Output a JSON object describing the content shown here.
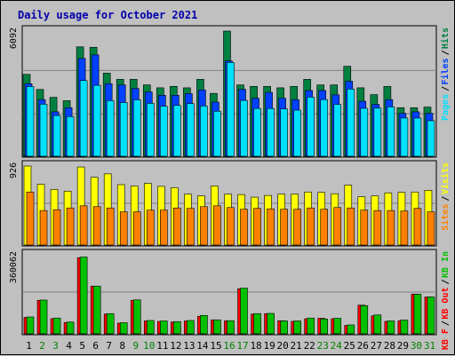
{
  "title": "Daily usage for October 2021",
  "colors": {
    "background": "#c0c0c0",
    "plot_bg": "#c0c0c0",
    "hits": "#008040",
    "files": "#0040ff",
    "pages": "#00e0ff",
    "visits": "#ffff00",
    "sites": "#ff8000",
    "kbin": "#00c000",
    "kbout": "#ff0000",
    "title": "#0000aa",
    "weekend_day": "#008000",
    "weekday": "#000000"
  },
  "chart_data": [
    {
      "type": "bar",
      "panel": "top",
      "ymax_label": "6092",
      "ymax": 6092,
      "right_labels": [
        "Hits",
        "Files",
        "Pages"
      ],
      "categories": [
        "1",
        "2",
        "3",
        "4",
        "5",
        "6",
        "7",
        "8",
        "9",
        "10",
        "11",
        "12",
        "13",
        "14",
        "15",
        "16",
        "17",
        "18",
        "19",
        "20",
        "21",
        "22",
        "23",
        "24",
        "25",
        "26",
        "27",
        "28",
        "29",
        "30",
        "31"
      ],
      "series": [
        {
          "name": "Hits",
          "values": [
            4000,
            3270,
            2890,
            2730,
            5330,
            5310,
            4060,
            3760,
            3760,
            3490,
            3350,
            3420,
            3350,
            3760,
            3080,
            6092,
            3490,
            3420,
            3420,
            3350,
            3420,
            3760,
            3490,
            3490,
            4390,
            3350,
            3020,
            3420,
            2390,
            2390,
            2420
          ]
        },
        {
          "name": "Files",
          "values": [
            3550,
            2780,
            2190,
            2390,
            4770,
            4940,
            3550,
            3490,
            3320,
            3150,
            2990,
            2990,
            3070,
            3250,
            2660,
            4650,
            3280,
            2850,
            3130,
            2850,
            2780,
            3220,
            3220,
            3010,
            3670,
            2700,
            2550,
            2780,
            2120,
            2190,
            2120
          ]
        },
        {
          "name": "Pages",
          "values": [
            3410,
            2560,
            2010,
            1960,
            3700,
            3470,
            2730,
            2640,
            2770,
            2600,
            2460,
            2500,
            2590,
            2470,
            2220,
            4570,
            2740,
            2350,
            2350,
            2330,
            2270,
            2900,
            2780,
            2550,
            3290,
            2360,
            2370,
            2430,
            1890,
            1890,
            1760
          ]
        }
      ]
    },
    {
      "type": "bar",
      "panel": "middle",
      "ymax_label": "926",
      "ymax": 926,
      "right_labels": [
        "Visits",
        "Sites"
      ],
      "categories": [
        "1",
        "2",
        "3",
        "4",
        "5",
        "6",
        "7",
        "8",
        "9",
        "10",
        "11",
        "12",
        "13",
        "14",
        "15",
        "16",
        "17",
        "18",
        "19",
        "20",
        "21",
        "22",
        "23",
        "24",
        "25",
        "26",
        "27",
        "28",
        "29",
        "30",
        "31"
      ],
      "series": [
        {
          "name": "Visits",
          "values": [
            926,
            715,
            655,
            635,
            915,
            795,
            835,
            710,
            695,
            725,
            690,
            675,
            600,
            580,
            695,
            600,
            595,
            565,
            585,
            600,
            600,
            625,
            620,
            605,
            705,
            570,
            580,
            615,
            620,
            625,
            645
          ]
        },
        {
          "name": "Sites",
          "values": [
            625,
            410,
            420,
            440,
            465,
            455,
            440,
            395,
            395,
            415,
            415,
            440,
            435,
            455,
            465,
            445,
            425,
            435,
            430,
            425,
            425,
            440,
            425,
            445,
            440,
            415,
            410,
            410,
            405,
            435,
            395
          ]
        }
      ]
    },
    {
      "type": "bar",
      "panel": "bottom",
      "ymax_label": "360062",
      "ymax": 360062,
      "right_labels": [
        "KB In",
        "KB Out",
        "KB F"
      ],
      "categories": [
        "1",
        "2",
        "3",
        "4",
        "5",
        "6",
        "7",
        "8",
        "9",
        "10",
        "11",
        "12",
        "13",
        "14",
        "15",
        "16",
        "17",
        "18",
        "19",
        "20",
        "21",
        "22",
        "23",
        "24",
        "25",
        "26",
        "27",
        "28",
        "29",
        "30",
        "31"
      ],
      "series": [
        {
          "name": "KB F",
          "values": [
            78000,
            155000,
            72000,
            55000,
            347000,
            219000,
            93000,
            52000,
            155000,
            62000,
            60000,
            57000,
            62000,
            83000,
            67000,
            63000,
            207000,
            93000,
            95000,
            63000,
            60000,
            72000,
            74000,
            72000,
            42000,
            133000,
            85000,
            60000,
            63000,
            183000,
            170000
          ]
        },
        {
          "name": "KB In",
          "values": [
            80000,
            156000,
            75000,
            57000,
            350000,
            219000,
            95000,
            54000,
            157000,
            64000,
            62000,
            59000,
            64000,
            87000,
            67000,
            63000,
            210000,
            95000,
            96000,
            62000,
            62000,
            75000,
            71000,
            74000,
            44000,
            131000,
            89000,
            62000,
            66000,
            182000,
            170000
          ]
        }
      ]
    }
  ],
  "x_axis": {
    "labels": [
      "1",
      "2",
      "3",
      "4",
      "5",
      "6",
      "7",
      "8",
      "9",
      "10",
      "11",
      "12",
      "13",
      "14",
      "15",
      "16",
      "17",
      "18",
      "19",
      "20",
      "21",
      "22",
      "23",
      "24",
      "25",
      "26",
      "27",
      "28",
      "29",
      "30",
      "31"
    ],
    "weekend_days": [
      "2",
      "3",
      "9",
      "10",
      "16",
      "17",
      "23",
      "24",
      "30",
      "31"
    ]
  }
}
